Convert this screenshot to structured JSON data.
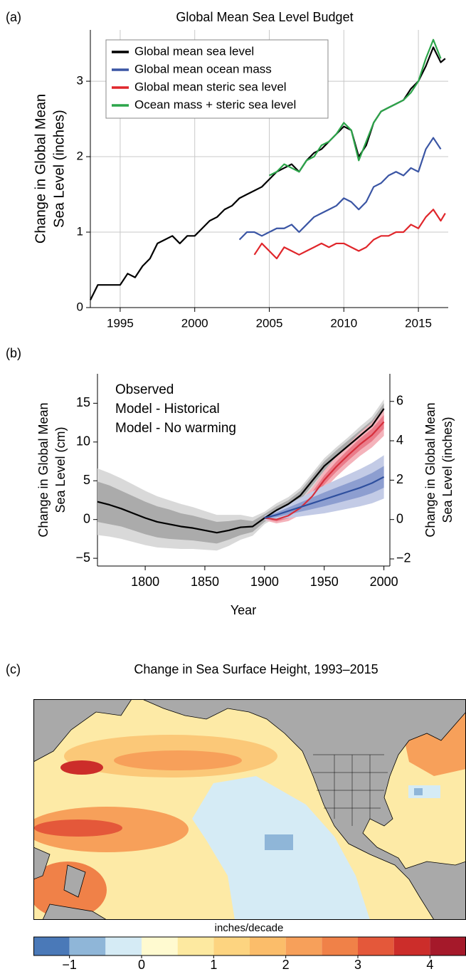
{
  "chart_data": [
    {
      "type": "line",
      "panel_label": "(a)",
      "title": "Global Mean Sea Level Budget",
      "ylabel": [
        "Change in Global Mean",
        "Sea Level (inches)"
      ],
      "xlim": [
        1993,
        2017
      ],
      "xticks": [
        1995,
        2000,
        2005,
        2010,
        2015
      ],
      "ylim": [
        0,
        3.68
      ],
      "yticks": [
        0,
        1,
        2,
        3
      ],
      "grid": true,
      "legend": "upper left",
      "legend_frame": true,
      "series": [
        {
          "name": "Global mean sea level",
          "color": "#000000",
          "x": [
            1993,
            1993.5,
            1994,
            1994.5,
            1995,
            1995.5,
            1996,
            1996.5,
            1997,
            1997.5,
            1998,
            1998.5,
            1999,
            1999.5,
            2000,
            2000.5,
            2001,
            2001.5,
            2002,
            2002.5,
            2003,
            2003.5,
            2004,
            2004.5,
            2005,
            2005.5,
            2006,
            2006.5,
            2007,
            2007.5,
            2008,
            2008.5,
            2009,
            2009.5,
            2010,
            2010.5,
            2011,
            2011.5,
            2012,
            2012.5,
            2013,
            2013.5,
            2014,
            2014.5,
            2015,
            2015.5,
            2016,
            2016.5,
            2016.8
          ],
          "values": [
            0.1,
            0.3,
            0.3,
            0.3,
            0.3,
            0.45,
            0.4,
            0.55,
            0.65,
            0.85,
            0.9,
            0.95,
            0.85,
            0.95,
            0.95,
            1.05,
            1.15,
            1.2,
            1.3,
            1.35,
            1.45,
            1.5,
            1.55,
            1.6,
            1.7,
            1.8,
            1.85,
            1.9,
            1.8,
            1.95,
            2.05,
            2.1,
            2.2,
            2.3,
            2.4,
            2.35,
            2.0,
            2.15,
            2.45,
            2.6,
            2.65,
            2.7,
            2.75,
            2.9,
            3.0,
            3.2,
            3.45,
            3.25,
            3.3
          ]
        },
        {
          "name": "Global mean ocean mass",
          "color": "#3a55a4",
          "x": [
            2003,
            2003.5,
            2004,
            2004.5,
            2005,
            2005.5,
            2006,
            2006.5,
            2007,
            2007.5,
            2008,
            2008.5,
            2009,
            2009.5,
            2010,
            2010.5,
            2011,
            2011.5,
            2012,
            2012.5,
            2013,
            2013.5,
            2014,
            2014.5,
            2015,
            2015.5,
            2016,
            2016.5
          ],
          "values": [
            0.9,
            1.0,
            1.0,
            0.95,
            1.0,
            1.05,
            1.05,
            1.1,
            1.0,
            1.1,
            1.2,
            1.25,
            1.3,
            1.35,
            1.45,
            1.4,
            1.3,
            1.4,
            1.6,
            1.65,
            1.75,
            1.8,
            1.75,
            1.85,
            1.8,
            2.1,
            2.25,
            2.1
          ]
        },
        {
          "name": "Global mean steric sea level",
          "color": "#e0262b",
          "x": [
            2004,
            2004.5,
            2005,
            2005.5,
            2006,
            2006.5,
            2007,
            2007.5,
            2008,
            2008.5,
            2009,
            2009.5,
            2010,
            2010.5,
            2011,
            2011.5,
            2012,
            2012.5,
            2013,
            2013.5,
            2014,
            2014.5,
            2015,
            2015.5,
            2016,
            2016.5,
            2016.8
          ],
          "values": [
            0.7,
            0.85,
            0.75,
            0.65,
            0.8,
            0.75,
            0.7,
            0.75,
            0.8,
            0.85,
            0.8,
            0.85,
            0.85,
            0.8,
            0.75,
            0.8,
            0.9,
            0.95,
            0.95,
            1.0,
            1.0,
            1.1,
            1.05,
            1.2,
            1.3,
            1.15,
            1.25
          ]
        },
        {
          "name": "Ocean mass + steric sea level",
          "color": "#2ca54a",
          "x": [
            2005,
            2005.5,
            2006,
            2006.5,
            2007,
            2007.5,
            2008,
            2008.5,
            2009,
            2009.5,
            2010,
            2010.5,
            2011,
            2011.5,
            2012,
            2012.5,
            2013,
            2013.5,
            2014,
            2014.5,
            2015,
            2015.5,
            2016,
            2016.5
          ],
          "values": [
            1.75,
            1.8,
            1.9,
            1.85,
            1.8,
            1.95,
            2.0,
            2.15,
            2.2,
            2.3,
            2.45,
            2.35,
            1.95,
            2.2,
            2.45,
            2.6,
            2.65,
            2.7,
            2.75,
            2.85,
            3.0,
            3.3,
            3.55,
            3.3
          ]
        }
      ]
    },
    {
      "type": "line",
      "panel_label": "(b)",
      "xlabel": "Year",
      "ylabel": [
        "Change in Global Mean",
        "Sea Level (cm)"
      ],
      "y2label": [
        "Change in Global Mean",
        "Sea Level (inches)"
      ],
      "xlim": [
        1760,
        2005
      ],
      "xticks": [
        1800,
        1850,
        1900,
        1950,
        2000
      ],
      "ylim": [
        -6,
        18.8
      ],
      "yticks": [
        {
          "value": -5,
          "label": "−5"
        },
        0,
        5,
        10,
        15
      ],
      "y2lim": [
        -2.362,
        7.402
      ],
      "y2ticks": [
        {
          "value": -2,
          "label": "−2"
        },
        0,
        2,
        4,
        6
      ],
      "grid": false,
      "legend": "upper left",
      "legend_frame": false,
      "series": [
        {
          "name": "Observed",
          "color": "#000000",
          "x": [
            1760,
            1770,
            1780,
            1790,
            1800,
            1810,
            1820,
            1830,
            1840,
            1850,
            1860,
            1870,
            1880,
            1890,
            1900,
            1910,
            1920,
            1930,
            1940,
            1950,
            1960,
            1970,
            1980,
            1990,
            2000
          ],
          "values": [
            2.3,
            1.9,
            1.4,
            0.8,
            0.2,
            -0.3,
            -0.6,
            -0.9,
            -1.1,
            -1.4,
            -1.7,
            -1.4,
            -1.0,
            -0.9,
            0.2,
            1.2,
            2.0,
            3.1,
            5.0,
            6.9,
            8.2,
            9.5,
            10.8,
            12.1,
            14.3
          ],
          "bands": [
            {
              "color": "#d9d9d9",
              "lower": [
                -2.0,
                -2.2,
                -2.5,
                -2.9,
                -3.3,
                -3.6,
                -3.7,
                -3.8,
                -3.8,
                -3.9,
                -4.0,
                -3.4,
                -2.6,
                -2.1,
                -0.6,
                0.3,
                1.1,
                2.1,
                4.0,
                5.9,
                7.1,
                8.4,
                9.6,
                10.9,
                13.1
              ],
              "upper": [
                6.6,
                6.0,
                5.3,
                4.5,
                3.7,
                3.0,
                2.5,
                2.0,
                1.6,
                1.1,
                0.6,
                0.6,
                0.6,
                0.3,
                1.0,
                2.1,
                2.9,
                4.1,
                6.0,
                7.9,
                9.3,
                10.6,
                12.0,
                13.3,
                15.5
              ]
            },
            {
              "color": "#ababab",
              "lower": [
                -0.3,
                -0.6,
                -0.9,
                -1.4,
                -1.9,
                -2.3,
                -2.5,
                -2.6,
                -2.7,
                -2.9,
                -3.1,
                -2.6,
                -2.0,
                -1.6,
                -0.3,
                0.7,
                1.5,
                2.5,
                4.4,
                6.3,
                7.5,
                8.8,
                10.1,
                11.4,
                13.6
              ],
              "upper": [
                4.9,
                4.4,
                3.7,
                3.0,
                2.3,
                1.7,
                1.3,
                0.8,
                0.5,
                0.1,
                -0.3,
                -0.2,
                0.0,
                -0.2,
                0.7,
                1.7,
                2.5,
                3.7,
                5.6,
                7.5,
                8.9,
                10.2,
                11.5,
                12.8,
                15.0
              ]
            }
          ]
        },
        {
          "name": "Model - Historical",
          "color": "#d62f3c",
          "x": [
            1900,
            1910,
            1920,
            1930,
            1940,
            1950,
            1960,
            1970,
            1980,
            1990,
            2000
          ],
          "values": [
            0.2,
            0.0,
            0.5,
            1.5,
            3.0,
            5.1,
            6.8,
            8.3,
            9.7,
            10.9,
            12.6
          ],
          "bands": [
            {
              "color": "#f4b3bb",
              "lower": [
                -0.1,
                -0.5,
                -0.2,
                0.6,
                1.9,
                3.9,
                5.5,
                6.9,
                8.2,
                9.3,
                10.8
              ],
              "upper": [
                0.5,
                0.5,
                1.2,
                2.4,
                4.1,
                6.3,
                8.1,
                9.7,
                11.2,
                12.5,
                14.4
              ]
            },
            {
              "color": "#ea7c8a",
              "lower": [
                0.05,
                -0.25,
                0.15,
                1.05,
                2.45,
                4.5,
                6.15,
                7.6,
                8.95,
                10.1,
                11.7
              ],
              "upper": [
                0.35,
                0.25,
                0.85,
                1.95,
                3.55,
                5.7,
                7.45,
                9.0,
                10.45,
                11.7,
                13.5
              ]
            }
          ]
        },
        {
          "name": "Model - No warming",
          "color": "#2e4f9e",
          "x": [
            1900,
            1910,
            1920,
            1930,
            1940,
            1950,
            1960,
            1970,
            1980,
            1990,
            2000
          ],
          "values": [
            0.2,
            0.6,
            1.1,
            1.6,
            2.1,
            2.6,
            3.1,
            3.6,
            4.1,
            4.7,
            5.5
          ],
          "bands": [
            {
              "color": "#c3cbe6",
              "lower": [
                -0.1,
                0.0,
                0.2,
                0.4,
                0.6,
                0.8,
                1.1,
                1.4,
                1.7,
                2.1,
                2.7
              ],
              "upper": [
                0.5,
                1.2,
                2.0,
                2.8,
                3.6,
                4.4,
                5.1,
                5.8,
                6.5,
                7.3,
                8.3
              ]
            },
            {
              "color": "#8d9ed0",
              "lower": [
                0.05,
                0.3,
                0.65,
                1.0,
                1.35,
                1.7,
                2.1,
                2.5,
                2.9,
                3.4,
                4.1
              ],
              "upper": [
                0.35,
                0.9,
                1.55,
                2.2,
                2.85,
                3.5,
                4.1,
                4.7,
                5.3,
                6.0,
                6.9
              ]
            }
          ]
        }
      ]
    },
    {
      "type": "map",
      "panel_label": "(c)",
      "title": "Change in Sea Surface Height, 1993–2015",
      "colorbar": {
        "label": "inches/decade",
        "bounds": [
          -1.5,
          -1,
          -0.5,
          0,
          0.5,
          1,
          1.5,
          2,
          2.5,
          3,
          3.5,
          4,
          4.5
        ],
        "colors": [
          "#4a79b8",
          "#8fb6d8",
          "#d5ebf5",
          "#fffad0",
          "#fde9a0",
          "#fdd480",
          "#fbbd6a",
          "#f7a05a",
          "#f08148",
          "#e4583a",
          "#cc2d2a",
          "#a5192a"
        ],
        "ticks": [
          {
            "value": -1,
            "label": "−1"
          },
          0,
          1,
          2,
          3,
          4
        ]
      }
    }
  ]
}
